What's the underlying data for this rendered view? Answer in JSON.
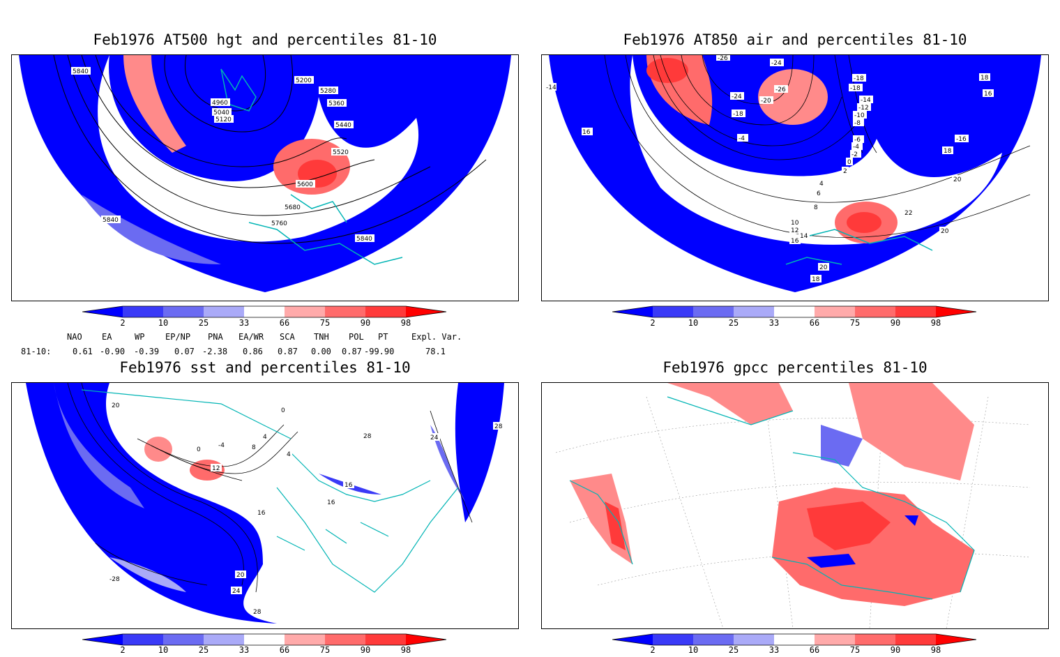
{
  "panels": {
    "hgt": {
      "title": "Feb1976 AT500 hgt and percentiles 81-10",
      "contour_labels": [
        "5840",
        "5200",
        "5280",
        "5360",
        "4960",
        "5040",
        "5120",
        "5440",
        "5520",
        "5600",
        "5680",
        "5760",
        "5840",
        "5840"
      ]
    },
    "air": {
      "title": "Feb1976 AT850 air and percentiles 81-10",
      "contour_labels": [
        "-14",
        "16",
        "-26",
        "-24",
        "-24",
        "-26",
        "-20",
        "-18",
        "-4",
        "-18",
        "-18",
        "-14",
        "-12",
        "-10",
        "-8",
        "-6",
        "-4",
        "-2",
        "0",
        "2",
        "18",
        "-16",
        "16",
        "18",
        "20",
        "22",
        "20",
        "4",
        "6",
        "8",
        "10",
        "12",
        "14",
        "16",
        "20",
        "18"
      ]
    },
    "sst": {
      "title": "Feb1976 sst and percentiles 81-10",
      "contour_labels": [
        "20",
        "0",
        "4",
        "8",
        "-4",
        "0",
        "12",
        "4",
        "16",
        "16",
        "16",
        "20",
        "24",
        "28",
        "28",
        "24",
        "28",
        "-28"
      ]
    },
    "gpcc": {
      "title": "Feb1976 gpcc percentiles 81-10"
    }
  },
  "legend": {
    "labels": [
      "2",
      "10",
      "25",
      "33",
      "66",
      "75",
      "90",
      "98"
    ],
    "colors": [
      "#0000ff",
      "#3a3af7",
      "#6b6bf2",
      "#aaaaf8",
      "#ffffff",
      "#ffaaaa",
      "#ff6b6b",
      "#ff3a3a",
      "#ff0000"
    ]
  },
  "indices": {
    "header": [
      "NAO",
      "EA",
      "WP",
      "EP/NP",
      "PNA",
      "EA/WR",
      "SCA",
      "TNH",
      "POL",
      "PT",
      "Expl. Var."
    ],
    "row_label": "81-10:",
    "values": [
      "0.61",
      "-0.90",
      "-0.39",
      "0.07",
      "-2.38",
      "0.86",
      "0.87",
      "0.00",
      "0.87",
      "-99.90",
      "78.1"
    ]
  }
}
